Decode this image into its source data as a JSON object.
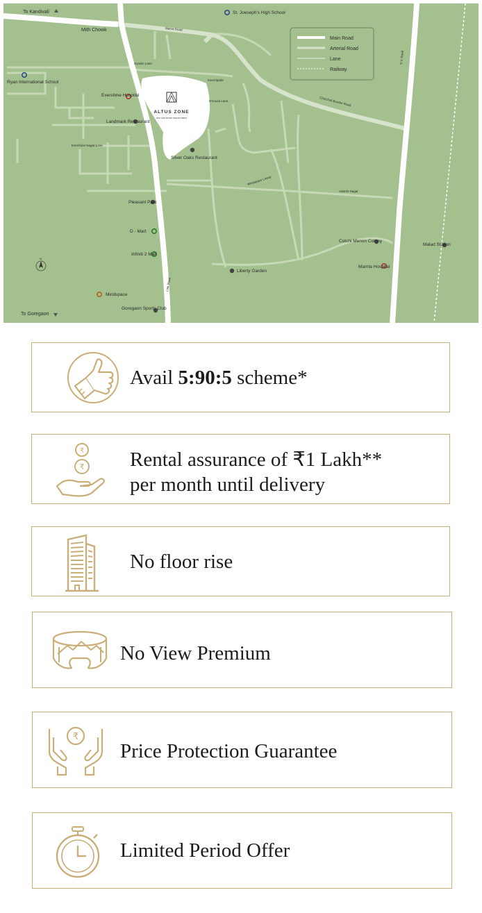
{
  "map": {
    "project": {
      "name": "ALTUS ZONE",
      "address": "OFF LINK ROAD, MALAD WEST"
    },
    "directions": {
      "north": "To Kandivali",
      "south": "To Goregaon"
    },
    "legend": [
      "Main Road",
      "Arterial Road",
      "Lane",
      "Railway"
    ],
    "roads": [
      "Mith Chowk",
      "Marve Road",
      "Sunder Lane",
      "Kanchpada",
      "D'souza Lane",
      "Chincholi Bunder Road",
      "Evershine Nagar Lane",
      "Mindspace Linear",
      "Adarsh Nagar",
      "Link Road",
      "S.V. Road"
    ],
    "places": {
      "st_joseph": "St. Joeseph's High School",
      "ryan": "Ryan International School",
      "evershine": "Evershine Hospital",
      "landmark": "Landmark Restaurant",
      "silver_oaks": "Silver Oaks Restaurant",
      "pleasant_park": "Pleasant Park",
      "dmart": "D - Mart",
      "infiniti": "Infiniti 2 Mall",
      "mindspace": "Mindspace",
      "goregaon_club": "Goregaon Sports Club",
      "liberty": "Liberty Garden",
      "cutchi": "Cutchi Menon Colony",
      "mamta": "Mamta Hospital",
      "malad_station": "Malad Station"
    },
    "compass": "N",
    "colors": {
      "map_bg": "#a4c08f",
      "block": "#ffffff",
      "road": "#c7d9b8",
      "accent": "#c9ae77"
    }
  },
  "offers": [
    {
      "prefix": "Avail ",
      "bold": "5:90:5",
      "suffix": " scheme*",
      "icon": "thumbs-up-icon"
    },
    {
      "line1": "Rental assurance of ₹1 Lakh**",
      "line2": "per month until delivery",
      "icon": "coins-hand-icon"
    },
    {
      "text": "No floor rise",
      "icon": "building-icon"
    },
    {
      "text": "No View Premium",
      "icon": "panorama-icon"
    },
    {
      "text": "Price Protection Guarantee",
      "icon": "rupee-hands-icon"
    },
    {
      "text": "Limited Period Offer",
      "icon": "stopwatch-icon"
    }
  ]
}
